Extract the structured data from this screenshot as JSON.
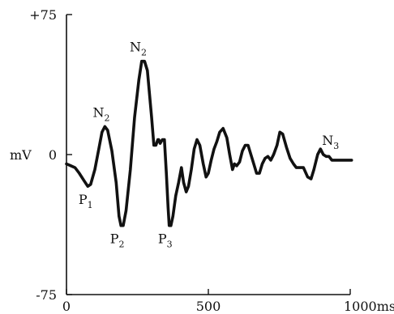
{
  "chart_data": {
    "type": "line",
    "ylabel": "mV",
    "xunit": "ms",
    "ylim": [
      -75,
      75
    ],
    "xlim": [
      0,
      1000
    ],
    "y_ticks": [
      {
        "value": 75,
        "label": "+75"
      },
      {
        "value": 0,
        "label": "0"
      },
      {
        "value": -75,
        "label": "-75"
      }
    ],
    "x_ticks": [
      {
        "value": 0,
        "label": "0"
      },
      {
        "value": 500,
        "label": "500"
      },
      {
        "value": 1000,
        "label": "1000ms"
      }
    ],
    "grid": false,
    "series": [
      {
        "x": [
          0,
          15,
          30,
          45,
          62,
          75,
          85,
          100,
          115,
          125,
          135,
          145,
          160,
          175,
          185,
          192,
          200,
          210,
          225,
          240,
          255,
          265,
          275,
          285,
          300,
          308,
          315,
          322,
          325,
          330,
          338,
          345,
          352,
          358,
          362,
          368,
          375,
          385,
          395,
          405,
          413,
          422,
          430,
          440,
          450,
          460,
          470,
          482,
          492,
          500,
          510,
          520,
          530,
          540,
          552,
          565,
          575,
          585,
          592,
          600,
          610,
          620,
          630,
          640,
          650,
          660,
          670,
          680,
          690,
          700,
          710,
          720,
          730,
          742,
          752,
          762,
          775,
          788,
          800,
          810,
          820,
          835,
          850,
          862,
          872,
          885,
          895,
          905,
          915,
          925,
          935,
          945,
          955,
          965,
          975,
          985,
          995,
          1005
        ],
        "y": [
          -5,
          -6,
          -7,
          -10,
          -14,
          -17,
          -16,
          -8,
          4,
          12,
          15,
          13,
          2,
          -15,
          -33,
          -38,
          -38,
          -30,
          -8,
          20,
          40,
          50,
          50,
          45,
          20,
          5,
          5,
          8,
          8,
          6,
          8,
          8,
          -10,
          -28,
          -38,
          -38,
          -33,
          -22,
          -15,
          -7,
          -15,
          -20,
          -17,
          -8,
          3,
          8,
          5,
          -5,
          -12,
          -10,
          -3,
          3,
          7,
          12,
          14,
          9,
          0,
          -8,
          -5,
          -6,
          -4,
          2,
          5,
          5,
          0,
          -5,
          -10,
          -10,
          -5,
          -2,
          -1,
          -3,
          0,
          5,
          12,
          11,
          4,
          -2,
          -5,
          -7,
          -7,
          -7,
          -12,
          -13,
          -8,
          0,
          3,
          0,
          -1,
          -1,
          -3,
          -3,
          -3,
          -3,
          -3,
          -3,
          -3,
          -3
        ]
      }
    ],
    "annotations": [
      {
        "label": "P",
        "sub": "1",
        "x": 85,
        "y": -17
      },
      {
        "label": "N",
        "sub": "2",
        "x": 140,
        "y": 15
      },
      {
        "label": "P",
        "sub": "2",
        "x": 196,
        "y": -38
      },
      {
        "label": "N",
        "sub": "2",
        "x": 270,
        "y": 50
      },
      {
        "label": "P",
        "sub": "3",
        "x": 365,
        "y": -38
      },
      {
        "label": "N",
        "sub": "3",
        "x": 948,
        "y": 0
      }
    ]
  }
}
